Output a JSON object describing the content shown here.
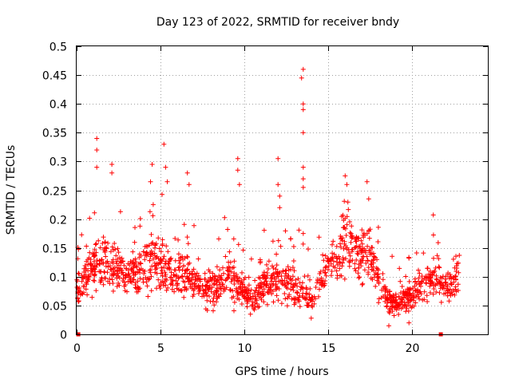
{
  "chart_data": {
    "type": "scatter",
    "title": "Day 123 of 2022, SRMTID for receiver bndy",
    "xlabel": "GPS time / hours",
    "ylabel": "SRMTID / TECUs",
    "xlim": [
      0,
      24.5
    ],
    "ylim": [
      0,
      0.5
    ],
    "xticks": [
      0,
      5,
      10,
      15,
      20
    ],
    "xtick_labels": [
      "0",
      "5",
      "10",
      "15",
      "20"
    ],
    "yticks": [
      0,
      0.05,
      0.1,
      0.15,
      0.2,
      0.25,
      0.3,
      0.35,
      0.4,
      0.45,
      0.5
    ],
    "ytick_labels": [
      "0",
      "0.05",
      "0.1",
      "0.15",
      "0.2",
      "0.25",
      "0.3",
      "0.35",
      "0.4",
      "0.45",
      "0.5"
    ],
    "grid": true,
    "marker": "+",
    "color": "#ff0000",
    "series": [
      {
        "name": "SRMTID",
        "trend_x": [
          0.0,
          0.5,
          1.0,
          1.5,
          2.0,
          2.5,
          3.0,
          3.5,
          4.0,
          4.5,
          5.0,
          5.5,
          6.0,
          6.5,
          7.0,
          7.5,
          8.0,
          8.5,
          9.0,
          9.5,
          10.0,
          10.5,
          11.0,
          11.5,
          12.0,
          12.5,
          13.0,
          13.5,
          14.0,
          14.5,
          15.0,
          15.5,
          16.0,
          16.5,
          17.0,
          17.5,
          18.0,
          18.5,
          19.0,
          19.5,
          20.0,
          20.5,
          21.0,
          21.5,
          22.0,
          22.5,
          22.8
        ],
        "trend_y": [
          0.08,
          0.1,
          0.12,
          0.13,
          0.12,
          0.11,
          0.1,
          0.11,
          0.12,
          0.13,
          0.12,
          0.11,
          0.11,
          0.1,
          0.09,
          0.08,
          0.08,
          0.09,
          0.1,
          0.09,
          0.07,
          0.06,
          0.08,
          0.09,
          0.1,
          0.09,
          0.08,
          0.07,
          0.06,
          0.09,
          0.12,
          0.14,
          0.16,
          0.15,
          0.14,
          0.13,
          0.1,
          0.06,
          0.05,
          0.06,
          0.07,
          0.08,
          0.09,
          0.1,
          0.08,
          0.09,
          0.11
        ],
        "outliers": [
          [
            1.2,
            0.34
          ],
          [
            1.2,
            0.32
          ],
          [
            1.2,
            0.29
          ],
          [
            2.1,
            0.295
          ],
          [
            2.1,
            0.28
          ],
          [
            4.5,
            0.295
          ],
          [
            4.4,
            0.265
          ],
          [
            5.2,
            0.33
          ],
          [
            5.3,
            0.29
          ],
          [
            5.4,
            0.265
          ],
          [
            6.6,
            0.28
          ],
          [
            6.7,
            0.26
          ],
          [
            9.6,
            0.305
          ],
          [
            9.6,
            0.285
          ],
          [
            9.7,
            0.26
          ],
          [
            12.0,
            0.305
          ],
          [
            12.0,
            0.26
          ],
          [
            12.1,
            0.24
          ],
          [
            12.1,
            0.22
          ],
          [
            13.5,
            0.46
          ],
          [
            13.4,
            0.445
          ],
          [
            13.5,
            0.4
          ],
          [
            13.5,
            0.39
          ],
          [
            13.5,
            0.35
          ],
          [
            13.5,
            0.29
          ],
          [
            13.5,
            0.27
          ],
          [
            13.5,
            0.255
          ],
          [
            13.5,
            0.175
          ],
          [
            16.0,
            0.275
          ],
          [
            16.1,
            0.26
          ],
          [
            17.3,
            0.265
          ],
          [
            17.4,
            0.235
          ],
          [
            19.8,
            0.02
          ],
          [
            18.6,
            0.015
          ]
        ],
        "baseline_points": [
          [
            0.1,
            0.0
          ],
          [
            21.7,
            0.0
          ]
        ]
      }
    ]
  }
}
